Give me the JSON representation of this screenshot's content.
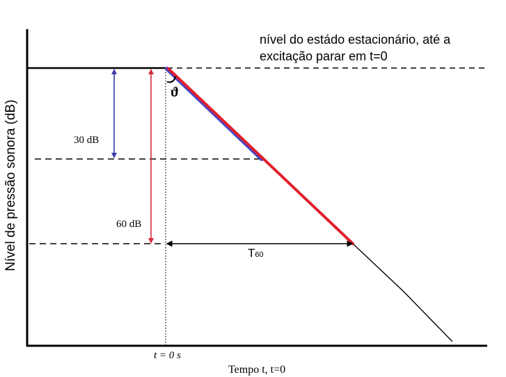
{
  "diagram": {
    "ylabel": "Nível de pressão sonora (dB)",
    "xlabel": "Tempo t, t=0",
    "t0_label": "t = 0 s",
    "steady_state_note": {
      "line1": "nível do estádo estacionário, até a",
      "line2": "excitação parar em t=0"
    },
    "angle_symbol": "ϑ",
    "drop_30_label": "30 dB",
    "drop_60_label": "60 dB",
    "t60_label_main": "T",
    "t60_label_sub": "60",
    "colors": {
      "axis": "#000000",
      "decay_line": "#000000",
      "drop_30_arrow": "#3a3aaa",
      "drop_60_arrow": "#d42a3a",
      "t30_fit": "#4646c8",
      "t60_fit": "#e0202c"
    }
  }
}
